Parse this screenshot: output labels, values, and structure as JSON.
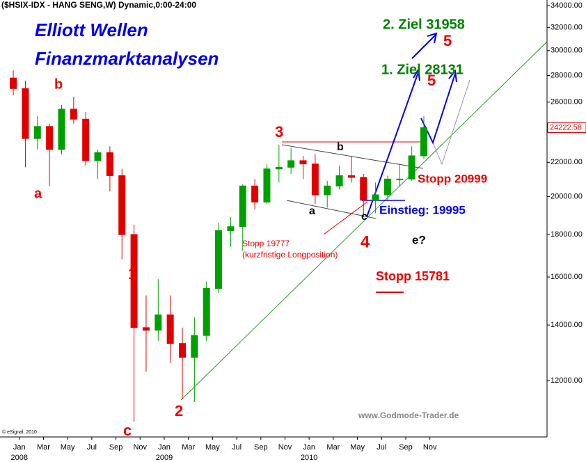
{
  "chart_data": {
    "type": "candlestick",
    "title": "($HSIX-IDX - HANG SENG,W) Dynamic,0:00-24:00",
    "x": [
      -0.5,
      0.5,
      1.5,
      2.5,
      3.5,
      4.5,
      5.5,
      6.5,
      7.5,
      8.5,
      9.5,
      10.5,
      11.5,
      12.5,
      13.5,
      14.5,
      15.5,
      16.5,
      17.5,
      18.5,
      19.5,
      20.5,
      21.5,
      22.5,
      23.5,
      24.5,
      25.5,
      26.5,
      27.5,
      28.5,
      29.5,
      30.5,
      31.5,
      32.5,
      33.5
    ],
    "open": [
      27800,
      27000,
      23500,
      24300,
      22800,
      25500,
      24800,
      22100,
      22600,
      21200,
      18000,
      13900,
      13800,
      14400,
      13300,
      12800,
      13600,
      15500,
      18200,
      18400,
      20600,
      19700,
      21600,
      21700,
      22100,
      21900,
      20100,
      20600,
      21200,
      21100,
      19800,
      20100,
      21000,
      21000,
      22400
    ],
    "high": [
      28400,
      27600,
      25000,
      24500,
      25800,
      26400,
      25300,
      22800,
      23000,
      21600,
      18500,
      15200,
      15900,
      15200,
      13900,
      14300,
      15800,
      18600,
      18900,
      20700,
      21000,
      21900,
      23100,
      22900,
      22400,
      22500,
      20900,
      21800,
      22400,
      21300,
      20800,
      21200,
      21900,
      23000,
      25000
    ],
    "low": [
      26500,
      21700,
      22800,
      20600,
      22500,
      24500,
      21800,
      21000,
      20300,
      16800,
      10700,
      12300,
      13400,
      12600,
      11400,
      11300,
      13400,
      15300,
      17400,
      17200,
      19300,
      19600,
      20800,
      21300,
      21000,
      19600,
      19400,
      20400,
      20800,
      18900,
      19100,
      19800,
      20600,
      20900,
      22200
    ],
    "close": [
      27000,
      23500,
      24300,
      22800,
      25500,
      24800,
      22100,
      22600,
      21200,
      18000,
      13900,
      13800,
      14400,
      13300,
      12800,
      13600,
      15500,
      18200,
      18400,
      20600,
      19700,
      21600,
      21700,
      22100,
      21900,
      20100,
      20600,
      21200,
      21100,
      19800,
      20100,
      21000,
      21000,
      22400,
      24222.58
    ],
    "up_color": "#00a000",
    "down_color": "#e00000",
    "xlim": [
      -1.6,
      43.7
    ],
    "xticks": [
      {
        "value": 0,
        "label": "Jan"
      },
      {
        "value": 2,
        "label": "Mar"
      },
      {
        "value": 4,
        "label": "May"
      },
      {
        "value": 6,
        "label": "Jul"
      },
      {
        "value": 8,
        "label": "Sep"
      },
      {
        "value": 10,
        "label": "Nov"
      },
      {
        "value": 12,
        "label": "Jan"
      },
      {
        "value": 14,
        "label": "Mar"
      },
      {
        "value": 16,
        "label": "May"
      },
      {
        "value": 18,
        "label": "Jul"
      },
      {
        "value": 20,
        "label": "Sep"
      },
      {
        "value": 22,
        "label": "Nov"
      },
      {
        "value": 24,
        "label": "Jan"
      },
      {
        "value": 26,
        "label": "Mar"
      },
      {
        "value": 28,
        "label": "May"
      },
      {
        "value": 30,
        "label": "Jul"
      },
      {
        "value": 32,
        "label": "Sep"
      },
      {
        "value": 34,
        "label": "Nov"
      }
    ],
    "year_ticks": [
      {
        "value": 0,
        "label": "2008"
      },
      {
        "value": 12,
        "label": "2009"
      },
      {
        "value": 24,
        "label": "2010"
      }
    ],
    "ylim": [
      10260,
      34530
    ],
    "log_scale": true,
    "yticks": [
      {
        "value": 12000,
        "label": "12000.00"
      },
      {
        "value": 14000,
        "label": "14000.00"
      },
      {
        "value": 16000,
        "label": "16000.00"
      },
      {
        "value": 18000,
        "label": "18000.00"
      },
      {
        "value": 20000,
        "label": "20000.00"
      },
      {
        "value": 22000,
        "label": "22000.00"
      },
      {
        "value": 24000,
        "label": "24000.00"
      },
      {
        "value": 26000,
        "label": "26000.00"
      },
      {
        "value": 28000,
        "label": "28000.00"
      },
      {
        "value": 30000,
        "label": "30000.00"
      },
      {
        "value": 32000,
        "label": "32000.00"
      },
      {
        "value": 34000,
        "label": "34000.00"
      }
    ],
    "annotations": [
      {
        "text": "Elliott Wellen",
        "color": "#0000ee"
      },
      {
        "text": "Finanzmarktanalysen",
        "color": "#0000ee"
      },
      {
        "text": "2. Ziel 31958",
        "color": "#008000"
      },
      {
        "text": "5",
        "color": "#ee0000"
      },
      {
        "text": "1. Ziel 28131",
        "color": "#008000"
      },
      {
        "text": "5",
        "color": "#ee0000"
      },
      {
        "text": "b",
        "color": "#ee0000"
      },
      {
        "text": "a",
        "color": "#ee0000"
      },
      {
        "text": "1",
        "color": "#ee0000"
      },
      {
        "text": "c",
        "color": "#ee0000"
      },
      {
        "text": "2",
        "color": "#ee0000"
      },
      {
        "text": "3",
        "color": "#ee0000"
      },
      {
        "text": "b",
        "color": "#000000"
      },
      {
        "text": "a",
        "color": "#000000"
      },
      {
        "text": "c",
        "color": "#000000"
      },
      {
        "text": "4",
        "color": "#ee0000"
      },
      {
        "text": "e?",
        "color": "#000000"
      },
      {
        "text": "Stopp 20999",
        "color": "#ee0000"
      },
      {
        "text": "Einstieg: 19995",
        "color": "#0000ee"
      },
      {
        "text": "Stopp 19777",
        "color": "#ee0000"
      },
      {
        "text": "(kurzfristige Longposition)",
        "color": "#ee0000"
      },
      {
        "text": "Stopp 15781",
        "color": "#ee0000"
      },
      {
        "text": "www.Godmode-Trader.de",
        "color": "#888888"
      },
      {
        "text": "© eSignal, 2010",
        "color": "#000000"
      }
    ]
  }
}
